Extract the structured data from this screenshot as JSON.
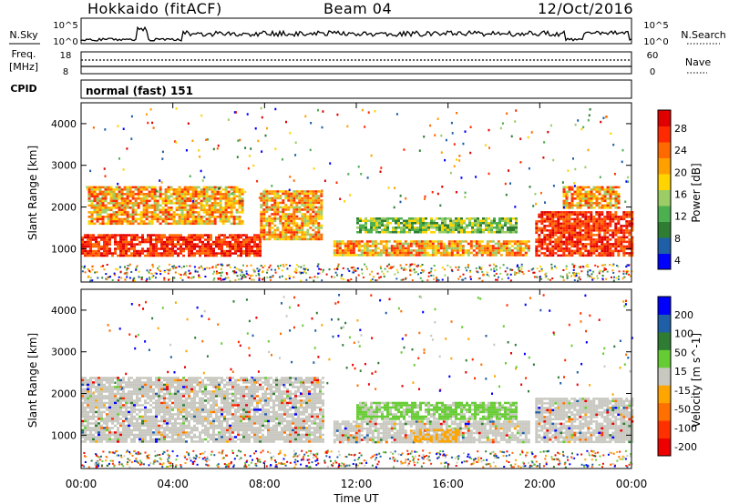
{
  "header": {
    "station": "Hokkaido (fitACF)",
    "beam": "Beam 04",
    "date": "12/Oct/2016"
  },
  "noise_panel": {
    "left_label": "N.Sky",
    "right_label": "N.Search",
    "left_ticks": [
      "10^5",
      "10^0"
    ],
    "right_ticks": [
      "10^5",
      "10^0"
    ]
  },
  "freq_panel": {
    "left_label_1": "Freq.",
    "left_label_2": "[MHz]",
    "left_ticks": [
      "18",
      "8"
    ],
    "right_label": "Nave",
    "right_ticks": [
      "60",
      "0"
    ]
  },
  "cpid_panel": {
    "label": "CPID",
    "mode_text": "normal (fast) 151"
  },
  "colors": {
    "power_scale": [
      "#0000ff",
      "#1f5fa8",
      "#2e7d32",
      "#4caf50",
      "#9ccc65",
      "#ffd400",
      "#ffa000",
      "#ff6a00",
      "#ff2a00",
      "#e00000"
    ],
    "velocity_scale": [
      "#0000ff",
      "#1f5fa8",
      "#2e7d32",
      "#66cc33",
      "#c8c8c0",
      "#ffa500",
      "#ff7000",
      "#ff3000",
      "#ee0000"
    ]
  },
  "chart_data": [
    {
      "type": "heatmap",
      "quantity": "Power",
      "xlabel": "",
      "ylabel": "Slant Range [km]",
      "colorbar_label": "Power [dB]",
      "colorbar_ticks": [
        "28",
        "24",
        "20",
        "16",
        "12",
        "8",
        "4"
      ],
      "y_ticks": [
        "4000",
        "3000",
        "2000",
        "1000"
      ],
      "ylim": [
        200,
        4500
      ],
      "x_range_hours": [
        0,
        24
      ],
      "regions": [
        {
          "t0": 0.0,
          "t1": 7.8,
          "r0": 850,
          "r1": 1350,
          "level": "high"
        },
        {
          "t0": 0.3,
          "t1": 7.0,
          "r0": 1600,
          "r1": 2500,
          "level": "medium"
        },
        {
          "t0": 7.8,
          "t1": 10.5,
          "r0": 1200,
          "r1": 2400,
          "level": "medium"
        },
        {
          "t0": 11.0,
          "t1": 19.5,
          "r0": 850,
          "r1": 1200,
          "level": "medium"
        },
        {
          "t0": 12.0,
          "t1": 19.0,
          "r0": 1400,
          "r1": 1750,
          "level": "low"
        },
        {
          "t0": 19.8,
          "t1": 24.0,
          "r0": 850,
          "r1": 1900,
          "level": "high"
        },
        {
          "t0": 21.0,
          "t1": 23.5,
          "r0": 2000,
          "r1": 2500,
          "level": "medium"
        }
      ]
    },
    {
      "type": "heatmap",
      "quantity": "Velocity",
      "xlabel": "Time UT",
      "ylabel": "Slant Range [km]",
      "colorbar_label": "Velocity [m s^-1]",
      "colorbar_ticks": [
        "200",
        "100",
        "50",
        "15",
        "-15",
        "-50",
        "-100",
        "-200"
      ],
      "y_ticks": [
        "4000",
        "3000",
        "2000",
        "1000"
      ],
      "ylim": [
        200,
        4500
      ],
      "x_ticks": [
        "00:00",
        "04:00",
        "08:00",
        "12:00",
        "16:00",
        "20:00",
        "00:00"
      ],
      "x_range_hours": [
        0,
        24
      ],
      "regions": [
        {
          "t0": 0.0,
          "t1": 10.5,
          "r0": 850,
          "r1": 2400,
          "level": "ground"
        },
        {
          "t0": 11.0,
          "t1": 19.5,
          "r0": 850,
          "r1": 1350,
          "level": "ground"
        },
        {
          "t0": 12.0,
          "t1": 19.0,
          "r0": 1400,
          "r1": 1800,
          "level": "positive"
        },
        {
          "t0": 14.5,
          "t1": 16.5,
          "r0": 850,
          "r1": 1150,
          "level": "negative"
        },
        {
          "t0": 19.8,
          "t1": 24.0,
          "r0": 850,
          "r1": 1900,
          "level": "ground"
        }
      ]
    }
  ]
}
